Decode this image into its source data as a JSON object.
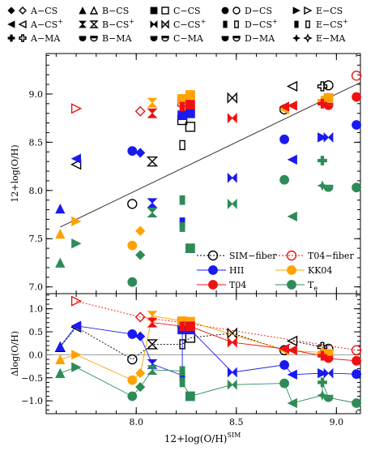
{
  "chart_data": {
    "type": "scatter",
    "x_range": [
      7.55,
      9.12
    ],
    "x_ticks": [
      {
        "value": 8.0,
        "label": "8.0"
      },
      {
        "value": 8.5,
        "label": "8.5"
      },
      {
        "value": 9.0,
        "label": "9.0"
      }
    ],
    "xlabel": {
      "main": "12+log(O/H)",
      "sup": "SIM"
    },
    "legend": {
      "items": [
        {
          "label": "A−CS",
          "labelRight": ""
        },
        {
          "label": "B−CS"
        },
        {
          "label": "C−CS"
        },
        {
          "label": "D−CS"
        },
        {
          "label": "E−CS"
        },
        {
          "label": "A−CS",
          "sup": "+"
        },
        {
          "label": "B−CS",
          "sup": "+"
        },
        {
          "label": "C−CS",
          "sup": "+"
        },
        {
          "label": "D−CS",
          "sup": "+"
        },
        {
          "label": "E−CS",
          "sup": "+"
        },
        {
          "label": "A−MA"
        },
        {
          "label": "B−MA"
        },
        {
          "label": "C−MA"
        },
        {
          "label": "D−MA"
        },
        {
          "label": "E−MA"
        }
      ],
      "methods": [
        {
          "label": "SIM−fiber",
          "color": "#000000"
        },
        {
          "label": "T04−fiber",
          "color": "#ee1111"
        },
        {
          "label": "HII",
          "color": "#1a1aee"
        },
        {
          "label": "KK04",
          "color": "#ffa200"
        },
        {
          "label": "T04",
          "color": "#ee1111"
        },
        {
          "label": "T",
          "sub": "e",
          "color": "#2e8b57"
        }
      ]
    },
    "colors": {
      "sim": "#000000",
      "t04fiber": "#ee1111",
      "hii": "#1a1aee",
      "kk04": "#ffa200",
      "t04": "#ee1111",
      "te": "#2e8b57"
    },
    "panels": [
      {
        "name": "top",
        "ylabel": "12+log(O/H)",
        "y_range": [
          6.93,
          9.42
        ],
        "y_ticks": [
          {
            "value": 7.0,
            "label": "7.0"
          },
          {
            "value": 7.5,
            "label": "7.5"
          },
          {
            "value": 8.0,
            "label": "8.0"
          },
          {
            "value": 8.5,
            "label": "8.5"
          },
          {
            "value": 9.0,
            "label": "9.0"
          }
        ],
        "reference_line": {
          "x": [
            7.62,
            9.12
          ],
          "y": [
            7.62,
            9.12
          ]
        },
        "series": [
          {
            "name": "SIM-fiber",
            "points": [
              [
                7.7,
                8.27,
                "tri-left-open"
              ],
              [
                7.98,
                7.86,
                "circle-open"
              ],
              [
                8.08,
                8.3,
                "hourglass-open"
              ],
              [
                8.23,
                8.47,
                "rect-open"
              ],
              [
                8.23,
                8.73,
                "square-open"
              ],
              [
                8.27,
                8.66,
                "square-open"
              ],
              [
                8.48,
                8.96,
                "bowtie-open"
              ],
              [
                8.74,
                8.84,
                "circle-open"
              ],
              [
                8.78,
                9.08,
                "tri-left-open"
              ],
              [
                8.93,
                9.08,
                "cross-open"
              ],
              [
                8.96,
                9.09,
                "circle-open"
              ]
            ]
          },
          {
            "name": "T04-fiber",
            "points": [
              [
                7.7,
                8.85,
                "tri-right-open"
              ],
              [
                8.02,
                8.82,
                "diamond-open"
              ],
              [
                8.23,
                8.92,
                "square-open"
              ],
              [
                9.1,
                9.19,
                "circle-open"
              ]
            ]
          },
          {
            "name": "HII",
            "points": [
              [
                7.62,
                7.81,
                "tri-up"
              ],
              [
                7.7,
                8.33,
                "tri-left"
              ],
              [
                7.98,
                8.41,
                "circle"
              ],
              [
                8.02,
                8.39,
                "diamond"
              ],
              [
                8.08,
                7.87,
                "hourglass"
              ],
              [
                8.23,
                7.67,
                "rect"
              ],
              [
                8.23,
                8.78,
                "square"
              ],
              [
                8.27,
                8.8,
                "square"
              ],
              [
                8.48,
                8.13,
                "bowtie"
              ],
              [
                8.74,
                8.53,
                "circle"
              ],
              [
                8.78,
                8.32,
                "tri-left"
              ],
              [
                8.93,
                8.55,
                "tri-right"
              ],
              [
                8.96,
                8.55,
                "bowtie"
              ],
              [
                9.1,
                8.68,
                "circle"
              ]
            ]
          },
          {
            "name": "KK04",
            "points": [
              [
                7.62,
                7.55,
                "tri-up"
              ],
              [
                7.7,
                7.68,
                "tri-right"
              ],
              [
                7.98,
                7.43,
                "circle"
              ],
              [
                8.02,
                7.58,
                "diamond"
              ],
              [
                8.08,
                8.91,
                "hourglass"
              ],
              [
                8.23,
                8.95,
                "square"
              ],
              [
                8.27,
                8.99,
                "square"
              ],
              [
                8.74,
                8.84,
                "tri-left"
              ],
              [
                8.93,
                8.93,
                "cross"
              ],
              [
                8.96,
                8.96,
                "square"
              ]
            ]
          },
          {
            "name": "T04",
            "points": [
              [
                8.08,
                8.8,
                "hourglass"
              ],
              [
                8.23,
                8.87,
                "rect"
              ],
              [
                8.27,
                8.89,
                "square"
              ],
              [
                8.48,
                8.75,
                "bowtie"
              ],
              [
                8.74,
                8.87,
                "tri-left"
              ],
              [
                8.78,
                8.88,
                "tri-left"
              ],
              [
                8.93,
                8.9,
                "cross"
              ],
              [
                8.96,
                8.88,
                "half"
              ],
              [
                9.1,
                8.97,
                "circle"
              ]
            ]
          },
          {
            "name": "Te",
            "points": [
              [
                7.62,
                7.25,
                "tri-up"
              ],
              [
                7.7,
                7.45,
                "tri-right"
              ],
              [
                7.98,
                7.05,
                "circle"
              ],
              [
                8.02,
                7.33,
                "diamond"
              ],
              [
                8.08,
                7.77,
                "hourglass"
              ],
              [
                8.23,
                7.9,
                "rect"
              ],
              [
                8.23,
                7.62,
                "rect"
              ],
              [
                8.27,
                7.4,
                "square"
              ],
              [
                8.48,
                7.86,
                "bowtie"
              ],
              [
                8.74,
                8.11,
                "circle"
              ],
              [
                8.78,
                7.73,
                "tri-left"
              ],
              [
                8.93,
                8.05,
                "star4"
              ],
              [
                8.93,
                8.31,
                "cross"
              ],
              [
                8.96,
                8.03,
                "half"
              ],
              [
                9.1,
                8.03,
                "circle"
              ]
            ]
          }
        ]
      },
      {
        "name": "bottom",
        "ylabel": "Δlog(O/H)",
        "y_range": [
          -1.28,
          1.33
        ],
        "y_ticks": [
          {
            "value": -1.0,
            "label": "−1.0"
          },
          {
            "value": -0.5,
            "label": "−0.5"
          },
          {
            "value": 0.0,
            "label": "0.0"
          },
          {
            "value": 0.5,
            "label": "0.5"
          },
          {
            "value": 1.0,
            "label": "1.0"
          }
        ],
        "reference_line": {
          "x": [
            7.55,
            9.12
          ],
          "y": [
            0,
            0
          ]
        },
        "series": [
          {
            "name": "SIM-fiber",
            "line": true,
            "points": [
              [
                7.62,
                0.17,
                "tri-up-open"
              ],
              [
                7.7,
                0.6,
                "tri-left-open"
              ],
              [
                7.98,
                -0.1,
                "circle-open"
              ],
              [
                8.08,
                0.23,
                "hourglass-open"
              ],
              [
                8.23,
                0.23,
                "rect-open"
              ],
              [
                8.27,
                0.37,
                "square-open"
              ],
              [
                8.48,
                0.47,
                "bowtie-open"
              ],
              [
                8.74,
                0.1,
                "circle-open"
              ],
              [
                8.78,
                0.3,
                "tri-left-open"
              ],
              [
                8.93,
                0.17,
                "cross-open"
              ],
              [
                8.96,
                0.13,
                "circle-open"
              ]
            ]
          },
          {
            "name": "T04-fiber",
            "line": true,
            "dashed": true,
            "points": [
              [
                7.7,
                1.17,
                "tri-right-open"
              ],
              [
                8.02,
                0.82,
                "diamond-open"
              ],
              [
                8.23,
                0.7,
                "square-open"
              ],
              [
                9.1,
                0.1,
                "circle-open"
              ]
            ]
          },
          {
            "name": "HII",
            "line": true,
            "points": [
              [
                7.62,
                0.18,
                "tri-up"
              ],
              [
                7.7,
                0.63,
                "tri-left"
              ],
              [
                7.98,
                0.45,
                "circle"
              ],
              [
                8.02,
                0.4,
                "diamond"
              ],
              [
                8.08,
                -0.2,
                "hourglass"
              ],
              [
                8.23,
                -0.45,
                "rect"
              ],
              [
                8.23,
                0.55,
                "square"
              ],
              [
                8.27,
                0.55,
                "square"
              ],
              [
                8.48,
                -0.38,
                "bowtie"
              ],
              [
                8.74,
                -0.22,
                "circle"
              ],
              [
                8.78,
                -0.43,
                "tri-left"
              ],
              [
                8.93,
                -0.4,
                "tri-right"
              ],
              [
                8.96,
                -0.4,
                "bowtie"
              ],
              [
                9.1,
                -0.42,
                "circle"
              ]
            ]
          },
          {
            "name": "KK04",
            "line": true,
            "points": [
              [
                7.62,
                -0.1,
                "tri-up"
              ],
              [
                7.7,
                0.0,
                "tri-right"
              ],
              [
                7.98,
                -0.55,
                "circle"
              ],
              [
                8.02,
                -0.4,
                "diamond"
              ],
              [
                8.08,
                0.85,
                "hourglass"
              ],
              [
                8.23,
                0.73,
                "square"
              ],
              [
                8.27,
                0.72,
                "square"
              ],
              [
                8.74,
                0.1,
                "tri-left"
              ],
              [
                8.93,
                0.05,
                "cross"
              ],
              [
                8.96,
                0.02,
                "square"
              ]
            ]
          },
          {
            "name": "T04",
            "line": true,
            "points": [
              [
                8.08,
                0.7,
                "hourglass"
              ],
              [
                8.23,
                0.62,
                "rect"
              ],
              [
                8.27,
                0.62,
                "square"
              ],
              [
                8.48,
                0.27,
                "bowtie"
              ],
              [
                8.74,
                0.13,
                "tri-left"
              ],
              [
                8.78,
                0.1,
                "tri-left"
              ],
              [
                8.93,
                -0.02,
                "cross"
              ],
              [
                8.96,
                -0.08,
                "half"
              ],
              [
                9.1,
                -0.13,
                "circle"
              ]
            ]
          },
          {
            "name": "Te",
            "line": true,
            "points": [
              [
                7.62,
                -0.4,
                "tri-up"
              ],
              [
                7.7,
                -0.27,
                "tri-right"
              ],
              [
                7.98,
                -0.9,
                "circle"
              ],
              [
                8.02,
                -0.7,
                "diamond"
              ],
              [
                8.08,
                -0.33,
                "hourglass"
              ],
              [
                8.23,
                -0.35,
                "rect"
              ],
              [
                8.23,
                -0.6,
                "rect"
              ],
              [
                8.27,
                -0.9,
                "square"
              ],
              [
                8.48,
                -0.65,
                "bowtie"
              ],
              [
                8.74,
                -0.62,
                "circle"
              ],
              [
                8.78,
                -1.05,
                "tri-left"
              ],
              [
                8.93,
                -0.88,
                "star4"
              ],
              [
                8.93,
                -0.6,
                "cross"
              ],
              [
                8.96,
                -0.93,
                "half"
              ],
              [
                9.1,
                -1.05,
                "circle"
              ]
            ]
          }
        ]
      }
    ]
  }
}
